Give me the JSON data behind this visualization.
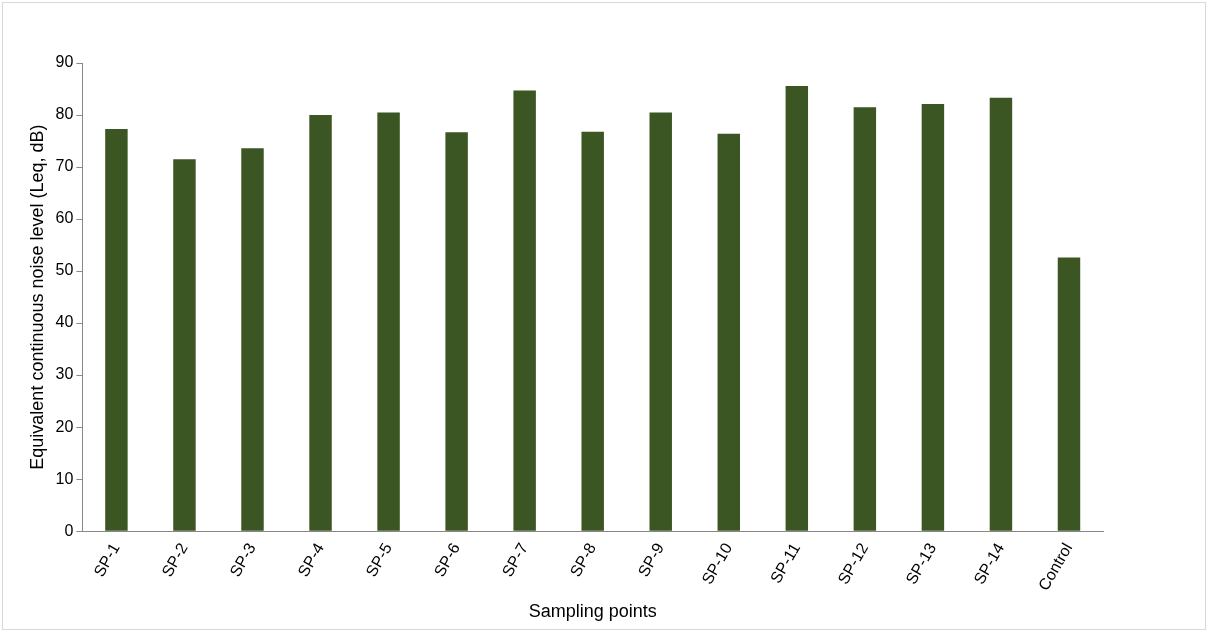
{
  "chart_data": {
    "type": "bar",
    "xlabel": "Sampling points",
    "ylabel": "Equivalent continuous noise level (Leq, dB)",
    "categories": [
      "SP-1",
      "SP-2",
      "SP-3",
      "SP-4",
      "SP-5",
      "SP-6",
      "SP-7",
      "SP-8",
      "SP-9",
      "SP-10",
      "SP-11",
      "SP-12",
      "SP-13",
      "SP-14",
      "Control"
    ],
    "values": [
      77.3,
      71.5,
      73.6,
      80.0,
      80.5,
      76.7,
      84.7,
      76.8,
      80.5,
      76.4,
      85.6,
      81.5,
      82.1,
      83.3,
      52.6
    ],
    "color": "#3b5523",
    "ylim": [
      0,
      90
    ],
    "yticks": [
      0,
      10,
      20,
      30,
      40,
      50,
      60,
      70,
      80,
      90
    ],
    "grid": false
  }
}
